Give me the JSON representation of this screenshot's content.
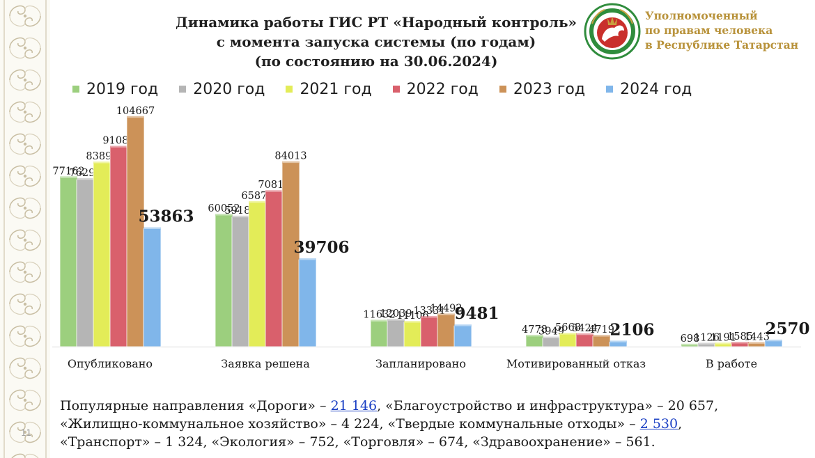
{
  "header": {
    "title_lines": [
      "Динамика работы ГИС РТ «Народный контроль»",
      "с момента запуска системы (по годам)",
      "(по состоянию на 30.06.2024)"
    ],
    "org_lines": [
      "Уполномоченный",
      "по правам человека",
      "в Республике Татарстан"
    ]
  },
  "colors": {
    "series": [
      "#9ccf7e",
      "#b5b5b5",
      "#e3ec58",
      "#d9606c",
      "#cc9258",
      "#80b6ea"
    ],
    "emblem_green": "#2f8c3c",
    "emblem_gold": "#c8a040",
    "org_text": "#b8923a",
    "link": "#1a3fc4"
  },
  "icons": {
    "emblem": "tatarstan-emblem-icon",
    "ornament": "ornament-border"
  },
  "chart_data": {
    "type": "bar",
    "categories": [
      "Опубликовано",
      "Заявка решена",
      "Запланировано",
      "Мотивированный отказ",
      "В работе"
    ],
    "series": [
      {
        "name": "2019 год",
        "values": [
          77162,
          60052,
          11632,
          4778,
          698
        ]
      },
      {
        "name": "2020 год",
        "values": [
          76290,
          59186,
          12039,
          3949,
          1126
        ]
      },
      {
        "name": "2021 год",
        "values": [
          83897,
          65872,
          11106,
          5668,
          1191
        ]
      },
      {
        "name": "2022 год",
        "values": [
          91083,
          70817,
          13331,
          5424,
          1585
        ]
      },
      {
        "name": "2023 год",
        "values": [
          104667,
          84013,
          14492,
          4719,
          1443
        ]
      },
      {
        "name": "2024 год",
        "values": [
          53863,
          39706,
          9481,
          2106,
          2570
        ]
      }
    ],
    "ylim": [
      0,
      110000
    ],
    "grid": false,
    "legend": "top",
    "xlabel": "",
    "ylabel": "",
    "title": ""
  },
  "footer": {
    "line1": {
      "pre": "Популярные направления «Дороги» – ",
      "link": "21 146",
      "post": ", «Благоустройство и инфраструктура» – 20 657,"
    },
    "line2": {
      "pre": "«Жилищно-коммунальное хозяйство» – 4 224, «Твердые коммунальные отходы» – ",
      "link": "2 530",
      "post": ","
    },
    "line3": "«Транспорт» – 1 324, «Экология» – 752, «Торговля» – 674, «Здравоохранение» – 561.",
    "page_number": "11"
  }
}
